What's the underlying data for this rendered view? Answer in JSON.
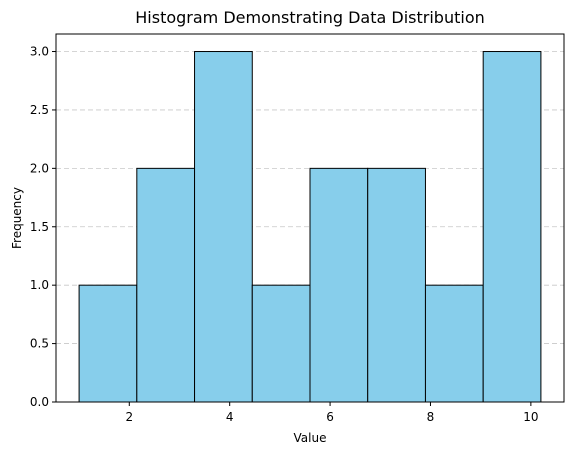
{
  "chart_data": {
    "type": "bar",
    "title": "Histogram Demonstrating Data Distribution",
    "xlabel": "Value",
    "ylabel": "Frequency",
    "bin_edges": [
      1.0,
      2.15,
      3.3,
      4.45,
      5.6,
      6.75,
      7.9,
      9.05,
      10.2
    ],
    "values": [
      1,
      2,
      3,
      1,
      2,
      2,
      1,
      3
    ],
    "xlim": [
      0.54,
      10.66
    ],
    "ylim": [
      0,
      3.15
    ],
    "xticks": [
      2,
      4,
      6,
      8,
      10
    ],
    "xtick_labels": [
      "2",
      "4",
      "6",
      "8",
      "10"
    ],
    "yticks": [
      0,
      0.5,
      1.0,
      1.5,
      2.0,
      2.5,
      3.0
    ],
    "ytick_labels": [
      "0.0",
      "0.5",
      "1.0",
      "1.5",
      "2.0",
      "2.5",
      "3.0"
    ],
    "grid": "y-dashed",
    "bar_color": "#87ceeb",
    "edge_color": "#000000",
    "legend": null
  }
}
